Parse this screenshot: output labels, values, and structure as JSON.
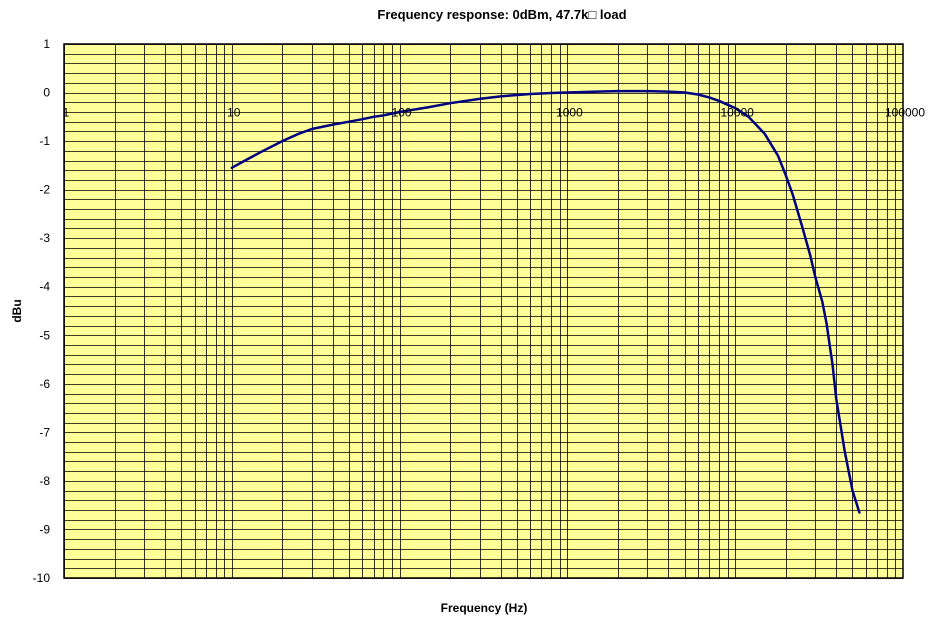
{
  "chart_data": {
    "type": "line",
    "title": "Frequency response: 0dBm, 47.7k□ load",
    "xlabel": "Frequency (Hz)",
    "ylabel": "dBu",
    "x_scale": "log",
    "xlim": [
      1,
      100000
    ],
    "ylim": [
      -10,
      1
    ],
    "x_ticks": [
      {
        "value": 1,
        "label": "1"
      },
      {
        "value": 10,
        "label": "10"
      },
      {
        "value": 100,
        "label": "100"
      },
      {
        "value": 1000,
        "label": "1000"
      },
      {
        "value": 10000,
        "label": "10000"
      },
      {
        "value": 100000,
        "label": "100000"
      }
    ],
    "y_ticks": [
      {
        "value": 1,
        "label": "1"
      },
      {
        "value": 0,
        "label": "0"
      },
      {
        "value": -1,
        "label": "-1"
      },
      {
        "value": -2,
        "label": "-2"
      },
      {
        "value": -3,
        "label": "-3"
      },
      {
        "value": -4,
        "label": "-4"
      },
      {
        "value": -5,
        "label": "-5"
      },
      {
        "value": -6,
        "label": "-6"
      },
      {
        "value": -7,
        "label": "-7"
      },
      {
        "value": -8,
        "label": "-8"
      },
      {
        "value": -9,
        "label": "-9"
      },
      {
        "value": -10,
        "label": "-10"
      }
    ],
    "y_minor_step": 0.2,
    "grid": true,
    "plot_background": "#ffff99",
    "grid_color": "#000000",
    "line_color": "#000080",
    "series": [
      {
        "x": [
          10,
          12,
          15,
          20,
          25,
          30,
          40,
          50,
          60,
          70,
          80,
          100,
          150,
          200,
          300,
          400,
          500,
          600,
          700,
          800,
          1000,
          1500,
          2000,
          3000,
          4000,
          5000,
          6000,
          7000,
          8000,
          9000,
          10000,
          12000,
          15000,
          18000,
          20000,
          22000,
          25000,
          28000,
          30000,
          33000,
          35000,
          38000,
          40000,
          45000,
          50000,
          55000
        ],
        "y": [
          -1.55,
          -1.4,
          -1.22,
          -1.0,
          -0.85,
          -0.75,
          -0.66,
          -0.6,
          -0.55,
          -0.5,
          -0.47,
          -0.4,
          -0.3,
          -0.22,
          -0.13,
          -0.08,
          -0.05,
          -0.03,
          -0.02,
          -0.01,
          0.0,
          0.02,
          0.03,
          0.03,
          0.02,
          0.0,
          -0.04,
          -0.1,
          -0.17,
          -0.25,
          -0.32,
          -0.5,
          -0.85,
          -1.3,
          -1.7,
          -2.1,
          -2.75,
          -3.35,
          -3.8,
          -4.3,
          -4.75,
          -5.6,
          -6.3,
          -7.4,
          -8.2,
          -8.65
        ]
      }
    ]
  }
}
